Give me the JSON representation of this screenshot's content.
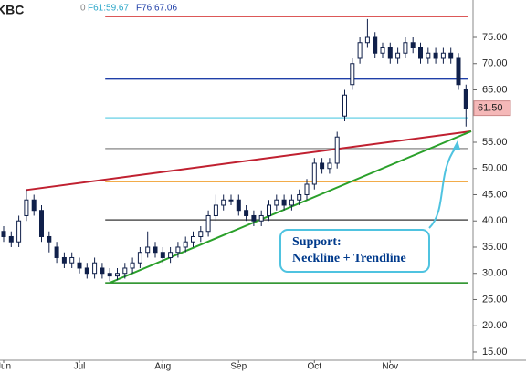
{
  "chart_data": {
    "type": "candlestick",
    "title": "KBC",
    "header_items": [
      "0",
      "F61:59.67",
      "F76:67.06"
    ],
    "header_colors": [
      "#888888",
      "#2aa6c8",
      "#1f3fa8"
    ],
    "categories": [
      "Jun",
      null,
      null,
      null,
      null,
      null,
      null,
      null,
      null,
      null,
      "Jul",
      null,
      null,
      null,
      null,
      null,
      null,
      null,
      null,
      null,
      null,
      "Aug",
      null,
      null,
      null,
      null,
      null,
      null,
      null,
      null,
      null,
      "Sep",
      null,
      null,
      null,
      null,
      null,
      null,
      null,
      null,
      null,
      "Oct",
      null,
      null,
      null,
      null,
      null,
      null,
      null,
      null,
      null,
      "Nov",
      null,
      null,
      null,
      null,
      null,
      null,
      null,
      null,
      null,
      null
    ],
    "open": [
      38,
      37,
      36,
      41,
      44,
      42,
      37,
      35,
      33,
      32,
      32,
      31,
      30,
      31,
      30,
      29.5,
      30,
      31,
      32,
      34,
      35,
      34,
      33,
      34,
      35,
      36,
      37,
      38,
      41,
      43,
      44,
      44,
      42,
      41,
      40,
      41,
      43,
      44,
      43,
      44,
      45,
      47,
      51,
      50,
      51,
      60,
      66,
      71,
      74,
      75,
      72,
      73,
      71,
      72,
      74,
      73,
      71,
      72,
      71,
      72,
      71,
      65
    ],
    "high": [
      39,
      38,
      41,
      46,
      45,
      43,
      38,
      36,
      34,
      34,
      33,
      32,
      33,
      32,
      31,
      31,
      32,
      33,
      35,
      38,
      36,
      35,
      35,
      36,
      37,
      38,
      39,
      42,
      45,
      45,
      45,
      45,
      43,
      42,
      42,
      44,
      45,
      45,
      45,
      46,
      48,
      52,
      52,
      52,
      57,
      65,
      71,
      75,
      78.5,
      76,
      74,
      74,
      73,
      75,
      75,
      74,
      73,
      73,
      73,
      73,
      72,
      66
    ],
    "low": [
      36,
      35,
      35,
      40,
      41,
      36,
      34,
      32,
      31,
      31,
      30,
      29,
      29,
      29,
      28.5,
      28.7,
      29,
      30,
      31,
      33,
      33,
      32,
      32,
      33,
      34,
      35,
      36,
      37,
      40,
      42,
      43,
      41,
      40,
      39,
      39,
      40,
      42,
      42,
      42,
      43,
      44,
      46,
      49,
      49,
      50,
      59,
      65,
      70,
      73,
      71,
      71,
      70,
      70,
      71,
      72,
      70,
      70,
      70,
      70,
      70,
      65,
      58
    ],
    "close": [
      37,
      36,
      40,
      44,
      42,
      37,
      36,
      33,
      32,
      33,
      31,
      30,
      32,
      30,
      29.5,
      30,
      31,
      32,
      34,
      35,
      34,
      33,
      34,
      35,
      36,
      37,
      38,
      41,
      43,
      44,
      44,
      42,
      41,
      40,
      41,
      43,
      44,
      43,
      44,
      45,
      47,
      51,
      50,
      51,
      56,
      64,
      70,
      74,
      75,
      72,
      73,
      71,
      72,
      74,
      73,
      71,
      72,
      71,
      72,
      71,
      66,
      61.5
    ],
    "up_color": "#ffffff",
    "down_color": "#10204a",
    "ylim": [
      13.43,
      82.13
    ],
    "yticks": [
      {
        "value": 15,
        "label": "15.00"
      },
      {
        "value": 20,
        "label": "20.00"
      },
      {
        "value": 25,
        "label": "25.00"
      },
      {
        "value": 30,
        "label": "30.00"
      },
      {
        "value": 35,
        "label": "35.00"
      },
      {
        "value": 40,
        "label": "40.00"
      },
      {
        "value": 45,
        "label": "45.00"
      },
      {
        "value": 50,
        "label": "50.00"
      },
      {
        "value": 55,
        "label": "55.00"
      },
      {
        "value": 65,
        "label": "65.00"
      },
      {
        "value": 70,
        "label": "70.00"
      },
      {
        "value": 75,
        "label": "75.00"
      }
    ],
    "levels": [
      {
        "value": 79,
        "color": "#d02020"
      },
      {
        "value": 67.06,
        "color": "#1f3fa8"
      },
      {
        "value": 59.67,
        "color": "#7fd8ea"
      },
      {
        "value": 53.8,
        "color": "#999999"
      },
      {
        "value": 47.5,
        "color": "#f0a030"
      },
      {
        "value": 40.2,
        "color": "#555555"
      },
      {
        "value": 28.2,
        "color": "#1a8a1a"
      }
    ],
    "trendlines": [
      {
        "color": "#c02030",
        "values": [
          45.9,
          57.1
        ]
      },
      {
        "color": "#2aa02a",
        "values": [
          28.2,
          57.1
        ]
      }
    ],
    "last_value": 61.5,
    "last_label": "61.50",
    "last_color": "#f5b8b8",
    "annotation": [
      "Support:",
      "Neckline + Trendline"
    ]
  }
}
